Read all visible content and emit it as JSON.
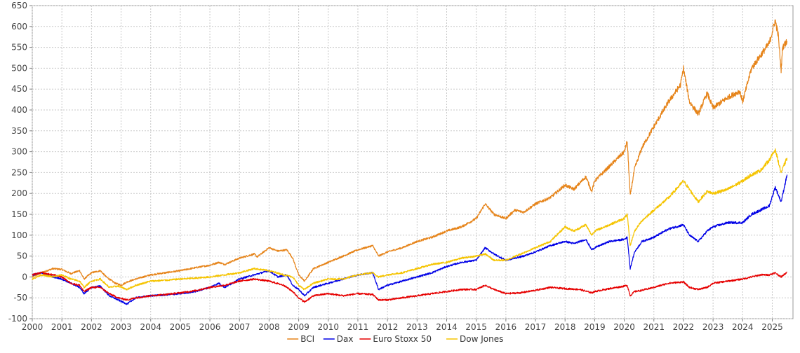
{
  "chart_data": {
    "type": "line",
    "title": "",
    "xlabel": "",
    "ylabel": "",
    "xlim": [
      2000.0,
      2025.7
    ],
    "ylim": [
      -100,
      650
    ],
    "grid": true,
    "legend_position": "bottom-center",
    "x_ticks": [
      "2000",
      "2001",
      "2002",
      "2003",
      "2004",
      "2005",
      "2006",
      "2007",
      "2008",
      "2009",
      "2010",
      "2011",
      "2012",
      "2013",
      "2014",
      "2015",
      "2016",
      "2017",
      "2018",
      "2019",
      "2020",
      "2021",
      "2022",
      "2023",
      "2024",
      "2025"
    ],
    "y_ticks": [
      "-100",
      "-50",
      "0",
      "50",
      "100",
      "150",
      "200",
      "250",
      "300",
      "350",
      "400",
      "450",
      "500",
      "550",
      "600",
      "650"
    ],
    "series": [
      {
        "name": "BCI",
        "color": "#e6841a",
        "points": [
          [
            2000.0,
            0
          ],
          [
            2000.3,
            10
          ],
          [
            2000.7,
            20
          ],
          [
            2001.0,
            18
          ],
          [
            2001.3,
            8
          ],
          [
            2001.6,
            15
          ],
          [
            2001.75,
            -5
          ],
          [
            2002.0,
            10
          ],
          [
            2002.3,
            15
          ],
          [
            2002.5,
            0
          ],
          [
            2002.8,
            -15
          ],
          [
            2003.0,
            -20
          ],
          [
            2003.2,
            -12
          ],
          [
            2003.5,
            -5
          ],
          [
            2004.0,
            5
          ],
          [
            2004.5,
            10
          ],
          [
            2005.0,
            15
          ],
          [
            2005.5,
            22
          ],
          [
            2006.0,
            28
          ],
          [
            2006.3,
            35
          ],
          [
            2006.5,
            30
          ],
          [
            2007.0,
            45
          ],
          [
            2007.5,
            55
          ],
          [
            2007.6,
            48
          ],
          [
            2008.0,
            70
          ],
          [
            2008.3,
            62
          ],
          [
            2008.6,
            65
          ],
          [
            2008.8,
            45
          ],
          [
            2009.0,
            5
          ],
          [
            2009.2,
            -10
          ],
          [
            2009.5,
            20
          ],
          [
            2010.0,
            35
          ],
          [
            2010.5,
            50
          ],
          [
            2011.0,
            65
          ],
          [
            2011.5,
            75
          ],
          [
            2011.7,
            50
          ],
          [
            2012.0,
            60
          ],
          [
            2012.5,
            70
          ],
          [
            2013.0,
            85
          ],
          [
            2013.5,
            95
          ],
          [
            2014.0,
            110
          ],
          [
            2014.5,
            120
          ],
          [
            2015.0,
            140
          ],
          [
            2015.3,
            175
          ],
          [
            2015.6,
            150
          ],
          [
            2016.0,
            140
          ],
          [
            2016.3,
            160
          ],
          [
            2016.6,
            155
          ],
          [
            2017.0,
            175
          ],
          [
            2017.5,
            190
          ],
          [
            2018.0,
            220
          ],
          [
            2018.3,
            210
          ],
          [
            2018.7,
            240
          ],
          [
            2018.9,
            205
          ],
          [
            2019.0,
            230
          ],
          [
            2019.5,
            265
          ],
          [
            2020.0,
            300
          ],
          [
            2020.1,
            325
          ],
          [
            2020.2,
            195
          ],
          [
            2020.35,
            260
          ],
          [
            2020.6,
            310
          ],
          [
            2021.0,
            360
          ],
          [
            2021.5,
            420
          ],
          [
            2021.9,
            460
          ],
          [
            2022.0,
            500
          ],
          [
            2022.2,
            420
          ],
          [
            2022.5,
            390
          ],
          [
            2022.8,
            440
          ],
          [
            2023.0,
            405
          ],
          [
            2023.5,
            430
          ],
          [
            2023.9,
            445
          ],
          [
            2024.0,
            420
          ],
          [
            2024.3,
            500
          ],
          [
            2024.6,
            530
          ],
          [
            2024.9,
            560
          ],
          [
            2025.1,
            615
          ],
          [
            2025.2,
            580
          ],
          [
            2025.3,
            495
          ],
          [
            2025.35,
            550
          ],
          [
            2025.5,
            565
          ]
        ]
      },
      {
        "name": "Dax",
        "color": "#0000e6",
        "points": [
          [
            2000.0,
            5
          ],
          [
            2000.3,
            10
          ],
          [
            2000.7,
            0
          ],
          [
            2001.0,
            -5
          ],
          [
            2001.3,
            -15
          ],
          [
            2001.6,
            -25
          ],
          [
            2001.75,
            -40
          ],
          [
            2002.0,
            -25
          ],
          [
            2002.3,
            -22
          ],
          [
            2002.6,
            -45
          ],
          [
            2002.9,
            -55
          ],
          [
            2003.2,
            -65
          ],
          [
            2003.5,
            -50
          ],
          [
            2004.0,
            -45
          ],
          [
            2004.5,
            -43
          ],
          [
            2005.0,
            -40
          ],
          [
            2005.5,
            -35
          ],
          [
            2006.0,
            -25
          ],
          [
            2006.3,
            -15
          ],
          [
            2006.5,
            -25
          ],
          [
            2007.0,
            -5
          ],
          [
            2007.5,
            5
          ],
          [
            2008.0,
            15
          ],
          [
            2008.3,
            0
          ],
          [
            2008.6,
            5
          ],
          [
            2008.8,
            -20
          ],
          [
            2009.0,
            -30
          ],
          [
            2009.2,
            -45
          ],
          [
            2009.5,
            -25
          ],
          [
            2010.0,
            -15
          ],
          [
            2010.5,
            -5
          ],
          [
            2011.0,
            5
          ],
          [
            2011.5,
            10
          ],
          [
            2011.7,
            -30
          ],
          [
            2012.0,
            -20
          ],
          [
            2012.5,
            -10
          ],
          [
            2013.0,
            0
          ],
          [
            2013.5,
            10
          ],
          [
            2014.0,
            25
          ],
          [
            2014.5,
            35
          ],
          [
            2015.0,
            40
          ],
          [
            2015.3,
            70
          ],
          [
            2015.6,
            55
          ],
          [
            2016.0,
            40
          ],
          [
            2016.3,
            45
          ],
          [
            2016.6,
            50
          ],
          [
            2017.0,
            60
          ],
          [
            2017.5,
            75
          ],
          [
            2018.0,
            85
          ],
          [
            2018.3,
            80
          ],
          [
            2018.7,
            90
          ],
          [
            2018.9,
            65
          ],
          [
            2019.0,
            70
          ],
          [
            2019.5,
            85
          ],
          [
            2020.0,
            90
          ],
          [
            2020.1,
            95
          ],
          [
            2020.2,
            20
          ],
          [
            2020.35,
            60
          ],
          [
            2020.6,
            85
          ],
          [
            2021.0,
            95
          ],
          [
            2021.5,
            115
          ],
          [
            2022.0,
            125
          ],
          [
            2022.2,
            100
          ],
          [
            2022.5,
            85
          ],
          [
            2022.8,
            110
          ],
          [
            2023.0,
            120
          ],
          [
            2023.5,
            130
          ],
          [
            2024.0,
            130
          ],
          [
            2024.3,
            150
          ],
          [
            2024.6,
            160
          ],
          [
            2024.9,
            170
          ],
          [
            2025.1,
            215
          ],
          [
            2025.3,
            180
          ],
          [
            2025.5,
            245
          ]
        ]
      },
      {
        "name": "Euro Stoxx 50",
        "color": "#e60000",
        "points": [
          [
            2000.0,
            5
          ],
          [
            2000.3,
            10
          ],
          [
            2000.7,
            5
          ],
          [
            2001.0,
            0
          ],
          [
            2001.3,
            -15
          ],
          [
            2001.6,
            -20
          ],
          [
            2001.75,
            -35
          ],
          [
            2002.0,
            -25
          ],
          [
            2002.3,
            -25
          ],
          [
            2002.6,
            -40
          ],
          [
            2002.9,
            -50
          ],
          [
            2003.2,
            -55
          ],
          [
            2003.5,
            -50
          ],
          [
            2004.0,
            -45
          ],
          [
            2004.5,
            -42
          ],
          [
            2005.0,
            -38
          ],
          [
            2005.5,
            -33
          ],
          [
            2006.0,
            -25
          ],
          [
            2006.5,
            -20
          ],
          [
            2007.0,
            -10
          ],
          [
            2007.5,
            -5
          ],
          [
            2008.0,
            -10
          ],
          [
            2008.5,
            -20
          ],
          [
            2008.8,
            -35
          ],
          [
            2009.0,
            -50
          ],
          [
            2009.2,
            -60
          ],
          [
            2009.5,
            -45
          ],
          [
            2010.0,
            -40
          ],
          [
            2010.5,
            -45
          ],
          [
            2011.0,
            -40
          ],
          [
            2011.5,
            -42
          ],
          [
            2011.7,
            -55
          ],
          [
            2012.0,
            -55
          ],
          [
            2012.5,
            -50
          ],
          [
            2013.0,
            -45
          ],
          [
            2013.5,
            -40
          ],
          [
            2014.0,
            -35
          ],
          [
            2014.5,
            -30
          ],
          [
            2015.0,
            -30
          ],
          [
            2015.3,
            -20
          ],
          [
            2015.6,
            -30
          ],
          [
            2016.0,
            -40
          ],
          [
            2016.5,
            -38
          ],
          [
            2017.0,
            -32
          ],
          [
            2017.5,
            -25
          ],
          [
            2018.0,
            -28
          ],
          [
            2018.5,
            -30
          ],
          [
            2018.9,
            -38
          ],
          [
            2019.0,
            -35
          ],
          [
            2019.5,
            -28
          ],
          [
            2020.0,
            -22
          ],
          [
            2020.1,
            -20
          ],
          [
            2020.2,
            -45
          ],
          [
            2020.35,
            -35
          ],
          [
            2020.6,
            -32
          ],
          [
            2021.0,
            -25
          ],
          [
            2021.5,
            -15
          ],
          [
            2022.0,
            -12
          ],
          [
            2022.2,
            -25
          ],
          [
            2022.5,
            -30
          ],
          [
            2022.8,
            -25
          ],
          [
            2023.0,
            -15
          ],
          [
            2023.5,
            -10
          ],
          [
            2024.0,
            -5
          ],
          [
            2024.3,
            0
          ],
          [
            2024.6,
            5
          ],
          [
            2024.9,
            5
          ],
          [
            2025.1,
            10
          ],
          [
            2025.3,
            0
          ],
          [
            2025.5,
            12
          ]
        ]
      },
      {
        "name": "Dow Jones",
        "color": "#f5c400",
        "points": [
          [
            2000.0,
            -5
          ],
          [
            2000.3,
            5
          ],
          [
            2000.7,
            0
          ],
          [
            2001.0,
            5
          ],
          [
            2001.3,
            -5
          ],
          [
            2001.6,
            -10
          ],
          [
            2001.75,
            -25
          ],
          [
            2002.0,
            -10
          ],
          [
            2002.3,
            -5
          ],
          [
            2002.6,
            -25
          ],
          [
            2002.9,
            -22
          ],
          [
            2003.2,
            -30
          ],
          [
            2003.5,
            -20
          ],
          [
            2004.0,
            -10
          ],
          [
            2004.5,
            -8
          ],
          [
            2005.0,
            -5
          ],
          [
            2005.5,
            -3
          ],
          [
            2006.0,
            0
          ],
          [
            2006.5,
            5
          ],
          [
            2007.0,
            10
          ],
          [
            2007.5,
            20
          ],
          [
            2008.0,
            15
          ],
          [
            2008.5,
            5
          ],
          [
            2008.8,
            0
          ],
          [
            2009.0,
            -20
          ],
          [
            2009.2,
            -30
          ],
          [
            2009.5,
            -15
          ],
          [
            2010.0,
            -5
          ],
          [
            2010.5,
            -5
          ],
          [
            2011.0,
            5
          ],
          [
            2011.5,
            10
          ],
          [
            2011.7,
            0
          ],
          [
            2012.0,
            5
          ],
          [
            2012.5,
            10
          ],
          [
            2013.0,
            20
          ],
          [
            2013.5,
            30
          ],
          [
            2014.0,
            35
          ],
          [
            2014.5,
            45
          ],
          [
            2015.0,
            50
          ],
          [
            2015.3,
            55
          ],
          [
            2015.6,
            40
          ],
          [
            2016.0,
            40
          ],
          [
            2016.5,
            55
          ],
          [
            2017.0,
            70
          ],
          [
            2017.5,
            85
          ],
          [
            2018.0,
            120
          ],
          [
            2018.3,
            110
          ],
          [
            2018.7,
            125
          ],
          [
            2018.9,
            100
          ],
          [
            2019.0,
            110
          ],
          [
            2019.5,
            125
          ],
          [
            2020.0,
            140
          ],
          [
            2020.1,
            150
          ],
          [
            2020.2,
            75
          ],
          [
            2020.35,
            110
          ],
          [
            2020.6,
            135
          ],
          [
            2021.0,
            160
          ],
          [
            2021.5,
            190
          ],
          [
            2022.0,
            230
          ],
          [
            2022.2,
            210
          ],
          [
            2022.5,
            180
          ],
          [
            2022.8,
            205
          ],
          [
            2023.0,
            200
          ],
          [
            2023.5,
            210
          ],
          [
            2024.0,
            230
          ],
          [
            2024.3,
            245
          ],
          [
            2024.6,
            255
          ],
          [
            2024.9,
            280
          ],
          [
            2025.1,
            305
          ],
          [
            2025.3,
            250
          ],
          [
            2025.5,
            285
          ]
        ]
      }
    ]
  }
}
